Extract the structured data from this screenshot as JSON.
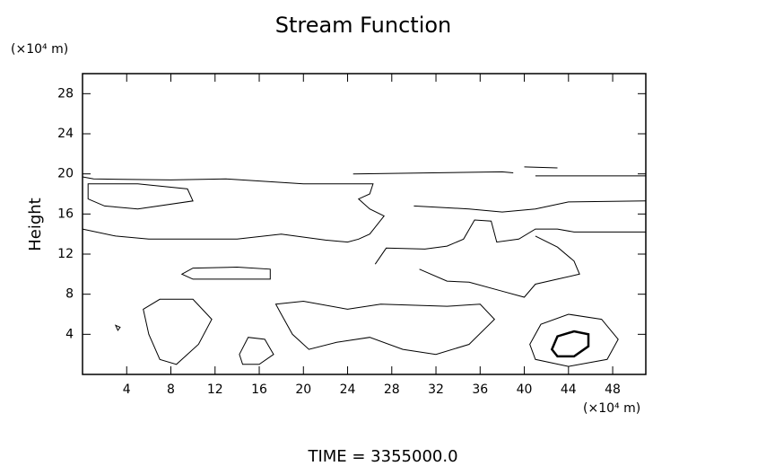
{
  "chart_data": {
    "type": "contour",
    "title": "Stream Function",
    "ylabel": "Height",
    "yunit": "(×10⁴ m)",
    "xunit": "(×10⁴ m)",
    "footer": "TIME = 3355000.0",
    "xlim": [
      0,
      51
    ],
    "ylim": [
      0,
      30
    ],
    "xticks": [
      4,
      8,
      12,
      16,
      20,
      24,
      28,
      32,
      36,
      40,
      44,
      48
    ],
    "yticks": [
      4,
      8,
      12,
      16,
      20,
      24,
      28
    ],
    "contours": [
      {
        "closed": true,
        "color": "#000",
        "width": 2.5,
        "x": [
          42.5,
          43,
          44.5,
          45.8,
          45.8,
          44.5,
          43
        ],
        "y": [
          2.5,
          3.8,
          4.3,
          4,
          2.8,
          1.8,
          1.8
        ]
      },
      {
        "closed": true,
        "color": "#000",
        "width": 1,
        "x": [
          40.5,
          41.5,
          44,
          47,
          48.5,
          47.5,
          44,
          41
        ],
        "y": [
          3,
          5,
          6,
          5.5,
          3.5,
          1.5,
          0.8,
          1.5
        ]
      },
      {
        "closed": true,
        "color": "#000",
        "width": 1,
        "x": [
          5.5,
          7,
          10,
          11.7,
          10.5,
          8.5,
          7,
          6
        ],
        "y": [
          6.5,
          7.5,
          7.5,
          5.5,
          3,
          1,
          1.5,
          4
        ]
      },
      {
        "closed": true,
        "color": "#000",
        "width": 1,
        "x": [
          14.2,
          15,
          16.5,
          17.3,
          16,
          14.5
        ],
        "y": [
          2,
          3.7,
          3.5,
          2,
          1,
          1
        ]
      },
      {
        "closed": true,
        "color": "#000",
        "width": 1,
        "x": [
          17.5,
          20,
          24,
          27,
          33,
          36,
          37.3,
          35,
          32,
          29,
          26,
          23,
          20.5,
          19,
          18
        ],
        "y": [
          7,
          7.3,
          6.5,
          7,
          6.8,
          7,
          5.5,
          3,
          2,
          2.5,
          3.7,
          3.2,
          2.5,
          4,
          6
        ]
      },
      {
        "closed": true,
        "color": "#000",
        "width": 1,
        "x": [
          3,
          3.4,
          3.2
        ],
        "y": [
          4.9,
          4.7,
          4.4
        ]
      },
      {
        "closed": true,
        "color": "#000",
        "width": 1,
        "x": [
          9,
          10,
          14,
          17,
          17,
          14,
          10
        ],
        "y": [
          10,
          10.6,
          10.7,
          10.5,
          9.5,
          9.5,
          9.5
        ]
      },
      {
        "closed": false,
        "color": "#000",
        "width": 1,
        "x": [
          0,
          3,
          6,
          10,
          14,
          18,
          22,
          24,
          25,
          26,
          27.3,
          26,
          25,
          26,
          26.3,
          20,
          13,
          8,
          1,
          0
        ],
        "y": [
          14.5,
          13.8,
          13.5,
          13.5,
          13.5,
          14,
          13.4,
          13.2,
          13.5,
          14,
          15.8,
          16.5,
          17.5,
          18,
          19,
          19,
          19.5,
          19.4,
          19.5,
          19.7
        ]
      },
      {
        "closed": true,
        "color": "#000",
        "width": 1,
        "x": [
          0.5,
          2,
          5,
          10,
          9.5,
          5,
          0.5
        ],
        "y": [
          17.5,
          16.8,
          16.5,
          17.3,
          18.5,
          19,
          19
        ]
      },
      {
        "closed": false,
        "color": "#000",
        "width": 1,
        "x": [
          26.5,
          27.5,
          31,
          33,
          34.5,
          35.5,
          37,
          37.5,
          39.5,
          41,
          43,
          44.5,
          51
        ],
        "y": [
          11,
          12.6,
          12.5,
          12.8,
          13.5,
          15.4,
          15.3,
          13.2,
          13.5,
          14.5,
          14.5,
          14.2,
          14.2
        ]
      },
      {
        "closed": false,
        "color": "#000",
        "width": 1,
        "x": [
          30.5,
          33,
          35,
          38,
          40,
          41,
          43,
          45,
          44.5,
          43,
          41
        ],
        "y": [
          10.5,
          9.3,
          9.2,
          8.3,
          7.7,
          9,
          9.5,
          10,
          11.3,
          12.7,
          13.8
        ]
      },
      {
        "closed": false,
        "color": "#000",
        "width": 1,
        "x": [
          24.5,
          38,
          39
        ],
        "y": [
          20,
          20.2,
          20.1
        ]
      },
      {
        "closed": false,
        "color": "#000",
        "width": 1,
        "x": [
          40,
          43
        ],
        "y": [
          20.7,
          20.6
        ]
      },
      {
        "closed": false,
        "color": "#000",
        "width": 1,
        "x": [
          41,
          51
        ],
        "y": [
          19.8,
          19.8
        ]
      },
      {
        "closed": false,
        "color": "#000",
        "width": 1,
        "x": [
          30,
          35,
          38,
          41,
          44,
          51
        ],
        "y": [
          16.8,
          16.5,
          16.2,
          16.5,
          17.2,
          17.3
        ]
      }
    ]
  }
}
